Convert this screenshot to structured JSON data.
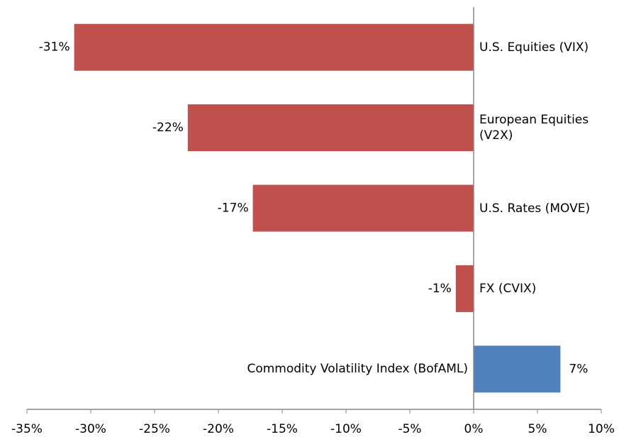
{
  "chart_data": {
    "type": "hbar",
    "categories": [
      "U.S. Equities (VIX)",
      "European Equities (V2X)",
      "U.S. Rates (MOVE)",
      "FX (CVIX)",
      "Commodity Volatility Index (BofAML)"
    ],
    "values": [
      -31.3,
      -22.4,
      -17.3,
      -1.4,
      6.8
    ],
    "value_labels": [
      "-31%",
      "-22%",
      "-17%",
      "-1%",
      "7%"
    ],
    "colors": [
      "#c0504d",
      "#c0504d",
      "#c0504d",
      "#c0504d",
      "#4f81bd"
    ],
    "xlim": [
      -35,
      10
    ],
    "xticks": [
      {
        "value": -35,
        "label": "-35%"
      },
      {
        "value": -30,
        "label": "-30%"
      },
      {
        "value": -25,
        "label": "-25%"
      },
      {
        "value": -20,
        "label": "-20%"
      },
      {
        "value": -15,
        "label": "-15%"
      },
      {
        "value": -10,
        "label": "-10%"
      },
      {
        "value": -5,
        "label": "-5%"
      },
      {
        "value": 0,
        "label": "0%"
      },
      {
        "value": 5,
        "label": "5%"
      },
      {
        "value": 10,
        "label": "10%"
      }
    ]
  }
}
